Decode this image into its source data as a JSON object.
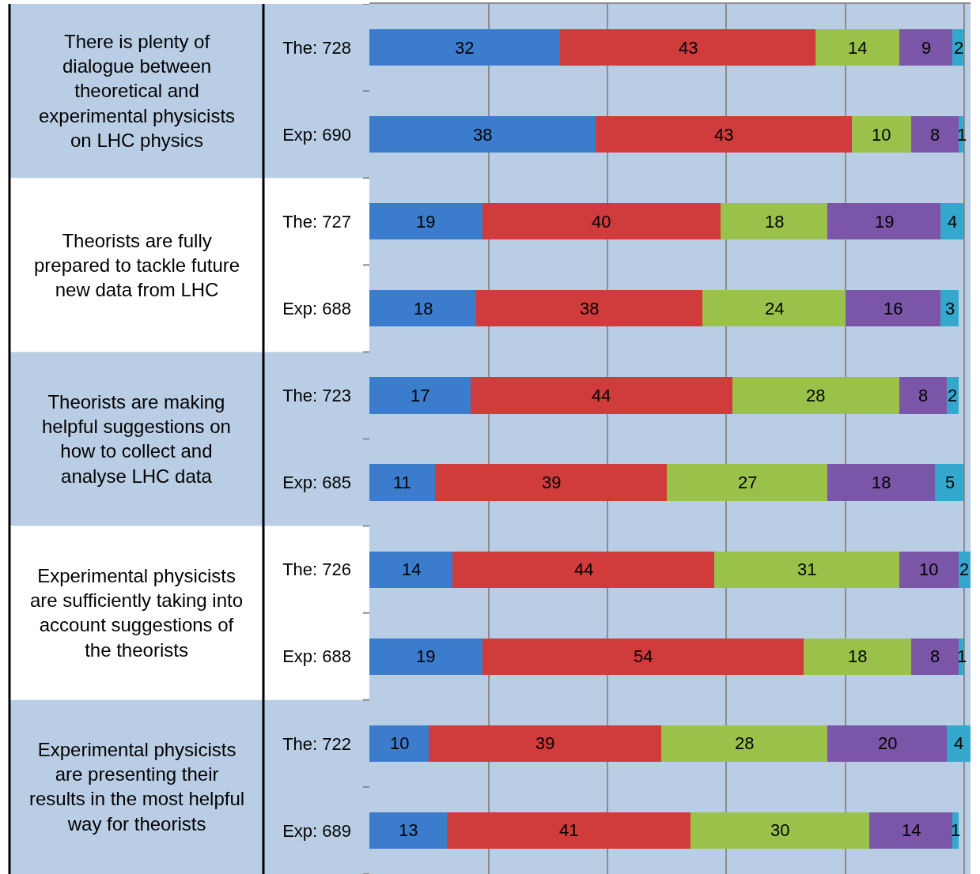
{
  "chart_data": {
    "type": "bar",
    "orientation": "horizontal",
    "stacked": true,
    "data_labels": true,
    "categories": [
      "The: 728",
      "Exp: 690",
      "The: 727",
      "Exp: 688",
      "The: 723",
      "Exp: 685",
      "The: 726",
      "Exp: 688",
      "The: 722",
      "Exp: 689"
    ],
    "series": [
      {
        "color": "#3b7dcc",
        "values": [
          32,
          38,
          19,
          18,
          17,
          11,
          14,
          19,
          10,
          13
        ]
      },
      {
        "color": "#d03b3b",
        "values": [
          43,
          43,
          40,
          38,
          44,
          39,
          44,
          54,
          39,
          41
        ]
      },
      {
        "color": "#9ac24a",
        "values": [
          14,
          10,
          18,
          24,
          28,
          27,
          31,
          18,
          28,
          30
        ]
      },
      {
        "color": "#7b56a8",
        "values": [
          9,
          8,
          19,
          16,
          8,
          18,
          10,
          8,
          20,
          14
        ]
      },
      {
        "color": "#33a8cc",
        "values": [
          2,
          1,
          4,
          3,
          2,
          5,
          2,
          1,
          4,
          1
        ]
      }
    ],
    "xlim": [
      0,
      101
    ],
    "xticks": [
      {
        "value": 0,
        "label": null
      },
      {
        "value": 20,
        "label": null
      },
      {
        "value": 40,
        "label": null
      },
      {
        "value": 60,
        "label": null
      },
      {
        "value": 80,
        "label": null
      },
      {
        "value": 100,
        "label": null
      }
    ],
    "tick_labels": "y",
    "grid": "x",
    "annotations": [
      "There is plenty of\ndialogue between\ntheoretical and\nexperimental physicists\non LHC physics",
      "Theorists are fully\nprepared to tackle future\nnew data from LHC",
      "Theorists are making\nhelpful suggestions on\nhow to collect and\nanalyse LHC data",
      "Experimental physicists\nare sufficiently taking into\naccount suggestions of\nthe theorists",
      "Experimental physicists\nare presenting their\nresults in the most helpful\nway for theorists"
    ]
  }
}
